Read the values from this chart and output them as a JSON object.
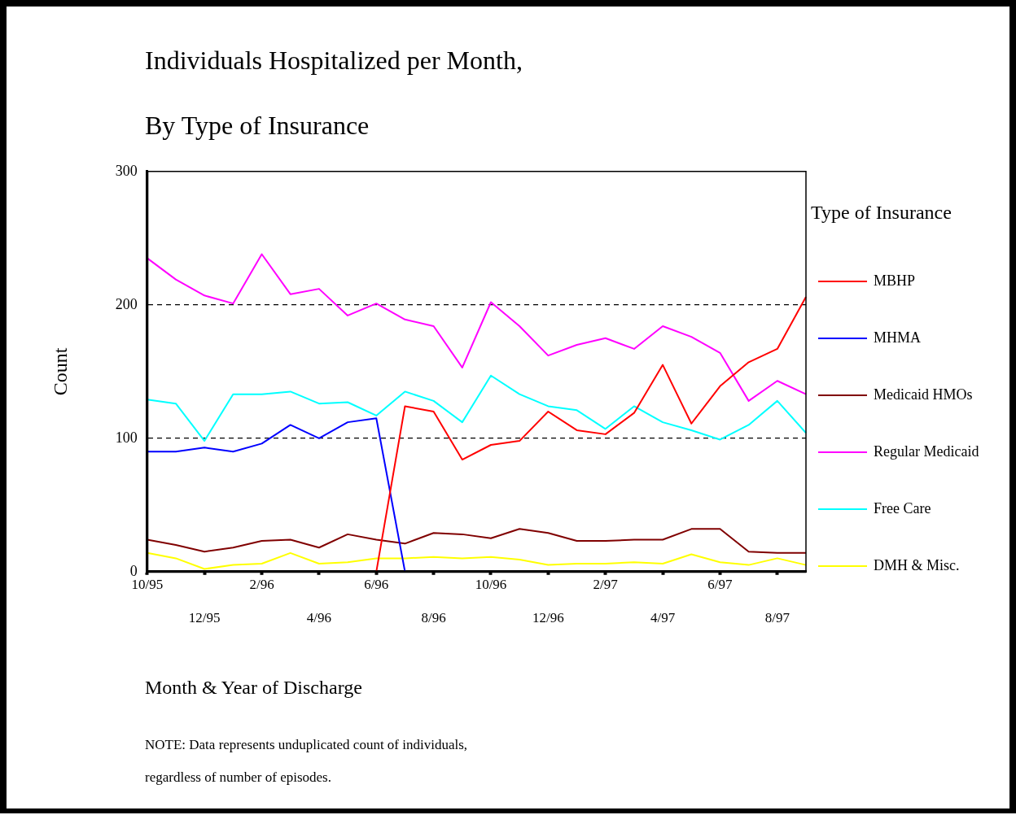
{
  "chart_data": {
    "type": "line",
    "title": "Individuals Hospitalized per Month,",
    "subtitle": "By Type of Insurance",
    "xlabel": "Month & Year of Discharge",
    "ylabel": "Count",
    "legend_title": "Type of Insurance",
    "categories": [
      "10/95",
      null,
      "12/95",
      null,
      "2/96",
      null,
      "4/96",
      null,
      "6/96",
      null,
      "8/96",
      null,
      "10/96",
      null,
      "12/96",
      null,
      "2/97",
      null,
      "4/97",
      null,
      "6/97",
      null,
      "8/97",
      null
    ],
    "series": [
      {
        "name": "MBHP",
        "color": "#ff0000",
        "values": [
          null,
          null,
          null,
          null,
          null,
          null,
          null,
          null,
          0,
          124,
          120,
          84,
          95,
          98,
          120,
          106,
          103,
          119,
          155,
          111,
          139,
          157,
          167,
          206
        ]
      },
      {
        "name": "MHMA",
        "color": "#0000ff",
        "values": [
          90,
          90,
          93,
          90,
          96,
          110,
          100,
          112,
          115,
          0,
          null,
          null,
          null,
          null,
          null,
          null,
          null,
          null,
          null,
          null,
          null,
          null,
          null,
          null
        ]
      },
      {
        "name": "Medicaid HMOs",
        "color": "#800000",
        "values": [
          24,
          20,
          15,
          18,
          23,
          24,
          18,
          28,
          24,
          21,
          29,
          28,
          25,
          32,
          29,
          23,
          23,
          24,
          24,
          32,
          32,
          15,
          14,
          14
        ]
      },
      {
        "name": "Regular Medicaid",
        "color": "#ff00ff",
        "values": [
          235,
          219,
          207,
          201,
          238,
          208,
          212,
          192,
          201,
          189,
          184,
          153,
          202,
          184,
          162,
          170,
          175,
          167,
          184,
          176,
          164,
          128,
          143,
          133
        ]
      },
      {
        "name": "Free Care",
        "color": "#00ffff",
        "values": [
          129,
          126,
          98,
          133,
          133,
          135,
          126,
          127,
          117,
          135,
          128,
          112,
          147,
          133,
          124,
          121,
          107,
          124,
          112,
          106,
          99,
          110,
          128,
          104
        ]
      },
      {
        "name": "DMH & Misc.",
        "color": "#ffff00",
        "values": [
          14,
          10,
          2,
          5,
          6,
          14,
          6,
          7,
          10,
          10,
          11,
          10,
          11,
          9,
          5,
          6,
          6,
          7,
          6,
          13,
          7,
          5,
          10,
          5
        ]
      }
    ],
    "ylim": [
      0,
      300
    ],
    "yticks": [
      0,
      100,
      200,
      300
    ],
    "grid": "y",
    "legend": "right",
    "marker": "none",
    "annotations": [
      "NOTE:  Data represents unduplicated count of individuals, regardless of number of episodes."
    ]
  }
}
